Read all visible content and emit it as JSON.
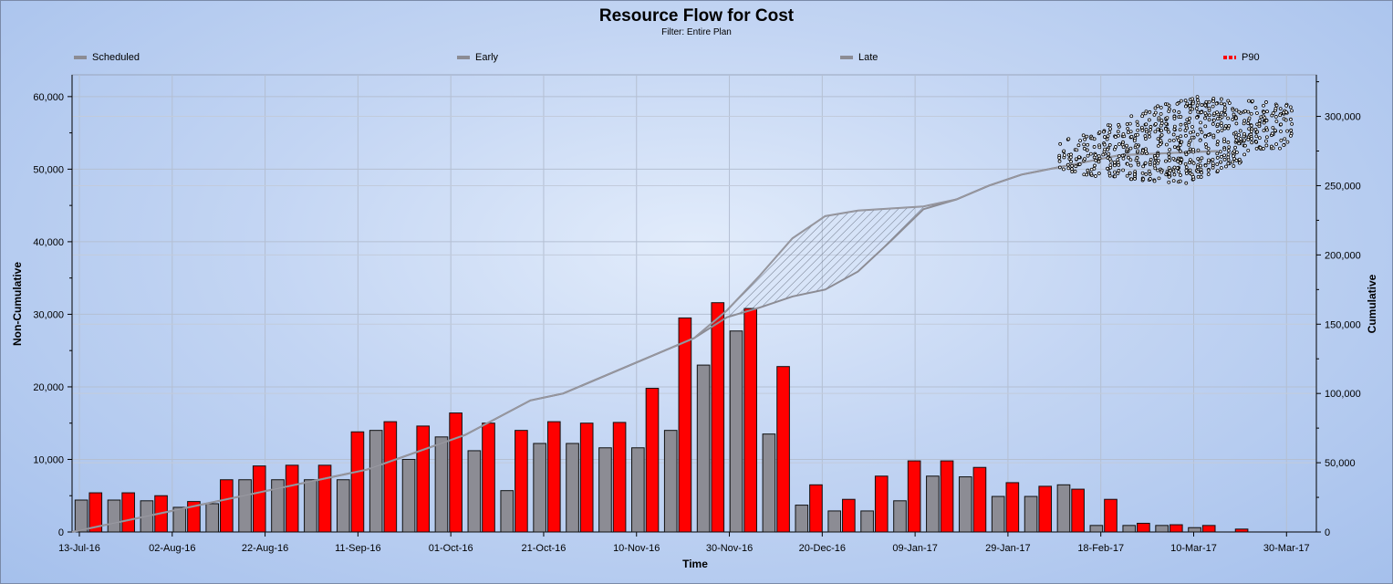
{
  "chart_data": {
    "type": "bar",
    "title": "Resource Flow for Cost",
    "subtitle": "Filter: Entire Plan",
    "xlabel": "Time",
    "ylabel_left": "Non-Cumulative",
    "ylabel_right": "Cumulative",
    "y_left_range": [
      0,
      63000
    ],
    "y_left_ticks": [
      "0",
      "10,000",
      "20,000",
      "30,000",
      "40,000",
      "50,000",
      "60,000"
    ],
    "y_right_range": [
      0,
      330000
    ],
    "y_right_ticks": [
      "0",
      "50,000",
      "100,000",
      "150,000",
      "200,000",
      "250,000",
      "300,000"
    ],
    "x_tick_labels": [
      "13-Jul-16",
      "02-Aug-16",
      "22-Aug-16",
      "11-Sep-16",
      "01-Oct-16",
      "21-Oct-16",
      "10-Nov-16",
      "30-Nov-16",
      "20-Dec-16",
      "09-Jan-17",
      "29-Jan-17",
      "18-Feb-17",
      "10-Mar-17",
      "30-Mar-17"
    ],
    "grid": true,
    "legend": [
      {
        "name": "Scheduled",
        "style": "solid",
        "color": "#8c8c94"
      },
      {
        "name": "Early",
        "style": "solid",
        "color": "#8c8c94"
      },
      {
        "name": "Late",
        "style": "solid",
        "color": "#8c8c94"
      },
      {
        "name": "P90",
        "style": "dashed",
        "color": "#ff0000"
      }
    ],
    "series": [
      {
        "name": "Scheduled",
        "color": "#8c8c94",
        "values": [
          4400,
          4400,
          4300,
          3400,
          3900,
          7200,
          7200,
          7200,
          7200,
          14000,
          10000,
          13100,
          11200,
          5700,
          12200,
          12200,
          11600,
          11600,
          14000,
          23000,
          27700,
          13500,
          3700,
          2900,
          2900,
          4300,
          7700,
          7600,
          4900,
          4900,
          6500,
          900,
          900,
          900,
          600,
          0,
          0,
          0
        ]
      },
      {
        "name": "P90",
        "color": "#ff0000",
        "values": [
          5400,
          5400,
          5000,
          4200,
          7200,
          9100,
          9200,
          9200,
          13800,
          15200,
          14600,
          16400,
          15000,
          14000,
          15200,
          15000,
          15100,
          19800,
          29500,
          31600,
          30800,
          22800,
          6500,
          4500,
          7700,
          9800,
          9800,
          8900,
          6800,
          6300,
          5900,
          4500,
          1200,
          1000,
          900,
          400,
          0,
          0
        ]
      }
    ],
    "cumulative_early": [
      [
        0,
        0
      ],
      [
        3,
        15000
      ],
      [
        6,
        30000
      ],
      [
        9,
        45000
      ],
      [
        12,
        70000
      ],
      [
        14,
        95000
      ],
      [
        15,
        100000
      ],
      [
        17,
        120000
      ],
      [
        19,
        140000
      ],
      [
        20,
        160000
      ],
      [
        21,
        185000
      ],
      [
        22,
        212000
      ],
      [
        23,
        228000
      ],
      [
        24,
        232000
      ],
      [
        26,
        235000
      ],
      [
        27,
        240000
      ],
      [
        28,
        250000
      ],
      [
        29,
        258000
      ],
      [
        32,
        272000
      ],
      [
        35,
        275000
      ]
    ],
    "cumulative_late": [
      [
        0,
        0
      ],
      [
        3,
        15000
      ],
      [
        6,
        30000
      ],
      [
        9,
        45000
      ],
      [
        12,
        70000
      ],
      [
        14,
        95000
      ],
      [
        15,
        100000
      ],
      [
        17,
        120000
      ],
      [
        19,
        140000
      ],
      [
        20,
        155000
      ],
      [
        21,
        162000
      ],
      [
        22,
        170000
      ],
      [
        23,
        175000
      ],
      [
        24,
        188000
      ],
      [
        25,
        210000
      ],
      [
        26,
        233000
      ],
      [
        27,
        240000
      ],
      [
        28,
        250000
      ],
      [
        29,
        258000
      ],
      [
        32,
        272000
      ],
      [
        35,
        275000
      ]
    ]
  }
}
